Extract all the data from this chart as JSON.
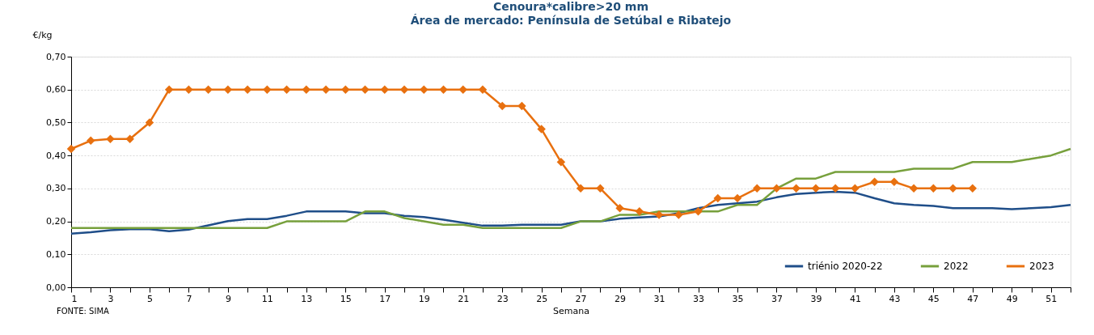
{
  "chart_data": {
    "type": "line",
    "title": "Cenoura*calibre>20 mm",
    "subtitle": "Área de mercado: Península de Setúbal e Ribatejo",
    "xlabel": "Semana",
    "ylabel": "€/kg",
    "x": [
      1,
      2,
      3,
      4,
      5,
      6,
      7,
      8,
      9,
      10,
      11,
      12,
      13,
      14,
      15,
      16,
      17,
      18,
      19,
      20,
      21,
      22,
      23,
      24,
      25,
      26,
      27,
      28,
      29,
      30,
      31,
      32,
      33,
      34,
      35,
      36,
      37,
      38,
      39,
      40,
      41,
      42,
      43,
      44,
      45,
      46,
      47,
      48,
      49,
      50,
      51,
      52
    ],
    "series": [
      {
        "name": "triénio 2020-22",
        "color": "#1f4e89",
        "marker": "none",
        "values": [
          0.163,
          0.167,
          0.173,
          0.176,
          0.176,
          0.17,
          0.175,
          0.188,
          0.201,
          0.207,
          0.207,
          0.217,
          0.23,
          0.23,
          0.23,
          0.225,
          0.225,
          0.217,
          0.213,
          0.205,
          0.196,
          0.187,
          0.187,
          0.19,
          0.19,
          0.19,
          0.2,
          0.2,
          0.208,
          0.212,
          0.215,
          0.225,
          0.24,
          0.25,
          0.255,
          0.26,
          0.273,
          0.283,
          0.287,
          0.29,
          0.287,
          0.27,
          0.255,
          0.25,
          0.247,
          0.24,
          0.24,
          0.24,
          0.237,
          0.24,
          0.243,
          0.25
        ]
      },
      {
        "name": "2022",
        "color": "#77a03c",
        "marker": "none",
        "values": [
          0.18,
          0.18,
          0.18,
          0.18,
          0.18,
          0.18,
          0.18,
          0.18,
          0.18,
          0.18,
          0.18,
          0.2,
          0.2,
          0.2,
          0.2,
          0.23,
          0.23,
          0.21,
          0.2,
          0.19,
          0.19,
          0.18,
          0.18,
          0.18,
          0.18,
          0.18,
          0.2,
          0.2,
          0.22,
          0.22,
          0.23,
          0.23,
          0.23,
          0.23,
          0.25,
          0.25,
          0.3,
          0.33,
          0.33,
          0.35,
          0.35,
          0.35,
          0.35,
          0.36,
          0.36,
          0.36,
          0.38,
          0.38,
          0.38,
          0.39,
          0.4,
          0.42
        ]
      },
      {
        "name": "2023",
        "color": "#e8700f",
        "marker": "diamond",
        "values": [
          0.42,
          0.445,
          0.45,
          0.45,
          0.5,
          0.6,
          0.6,
          0.6,
          0.6,
          0.6,
          0.6,
          0.6,
          0.6,
          0.6,
          0.6,
          0.6,
          0.6,
          0.6,
          0.6,
          0.6,
          0.6,
          0.6,
          0.55,
          0.55,
          0.48,
          0.38,
          0.3,
          0.3,
          0.24,
          0.23,
          0.22,
          0.22,
          0.23,
          0.27,
          0.27,
          0.3,
          0.3,
          0.3,
          0.3,
          0.3,
          0.3,
          0.32,
          0.32,
          0.3,
          0.3,
          0.3,
          0.3,
          null,
          null,
          null,
          null,
          null
        ]
      }
    ],
    "xlim": [
      1,
      52
    ],
    "xticks": [
      1,
      {
        "value": 2,
        "label": null
      },
      3,
      {
        "value": 4,
        "label": null
      },
      5,
      {
        "value": 6,
        "label": null
      },
      7,
      {
        "value": 8,
        "label": null
      },
      9,
      {
        "value": 10,
        "label": null
      },
      11,
      {
        "value": 12,
        "label": null
      },
      13,
      {
        "value": 14,
        "label": null
      },
      15,
      {
        "value": 16,
        "label": null
      },
      17,
      {
        "value": 18,
        "label": null
      },
      19,
      {
        "value": 20,
        "label": null
      },
      21,
      {
        "value": 22,
        "label": null
      },
      23,
      {
        "value": 24,
        "label": null
      },
      25,
      {
        "value": 26,
        "label": null
      },
      27,
      {
        "value": 28,
        "label": null
      },
      29,
      {
        "value": 30,
        "label": null
      },
      31,
      {
        "value": 32,
        "label": null
      },
      33,
      {
        "value": 34,
        "label": null
      },
      35,
      {
        "value": 36,
        "label": null
      },
      37,
      {
        "value": 38,
        "label": null
      },
      39,
      {
        "value": 40,
        "label": null
      },
      41,
      {
        "value": 42,
        "label": null
      },
      43,
      {
        "value": 44,
        "label": null
      },
      45,
      {
        "value": 46,
        "label": null
      },
      47,
      {
        "value": 48,
        "label": null
      },
      49,
      {
        "value": 50,
        "label": null
      },
      51,
      {
        "value": 52,
        "label": null
      }
    ],
    "ylim": [
      0,
      0.7
    ],
    "yticks": [
      {
        "value": 0,
        "label": "0,00"
      },
      {
        "value": 0.1,
        "label": "0,10"
      },
      {
        "value": 0.2,
        "label": "0,20"
      },
      {
        "value": 0.3,
        "label": "0,30"
      },
      {
        "value": 0.4,
        "label": "0,40"
      },
      {
        "value": 0.5,
        "label": "0,50"
      },
      {
        "value": 0.6,
        "label": "0,60"
      },
      {
        "value": 0.7,
        "label": "0,70"
      }
    ],
    "grid": "y",
    "legend": "bottom right",
    "line_style": "solid",
    "annotations": [
      "FONTE: SIMA"
    ]
  }
}
